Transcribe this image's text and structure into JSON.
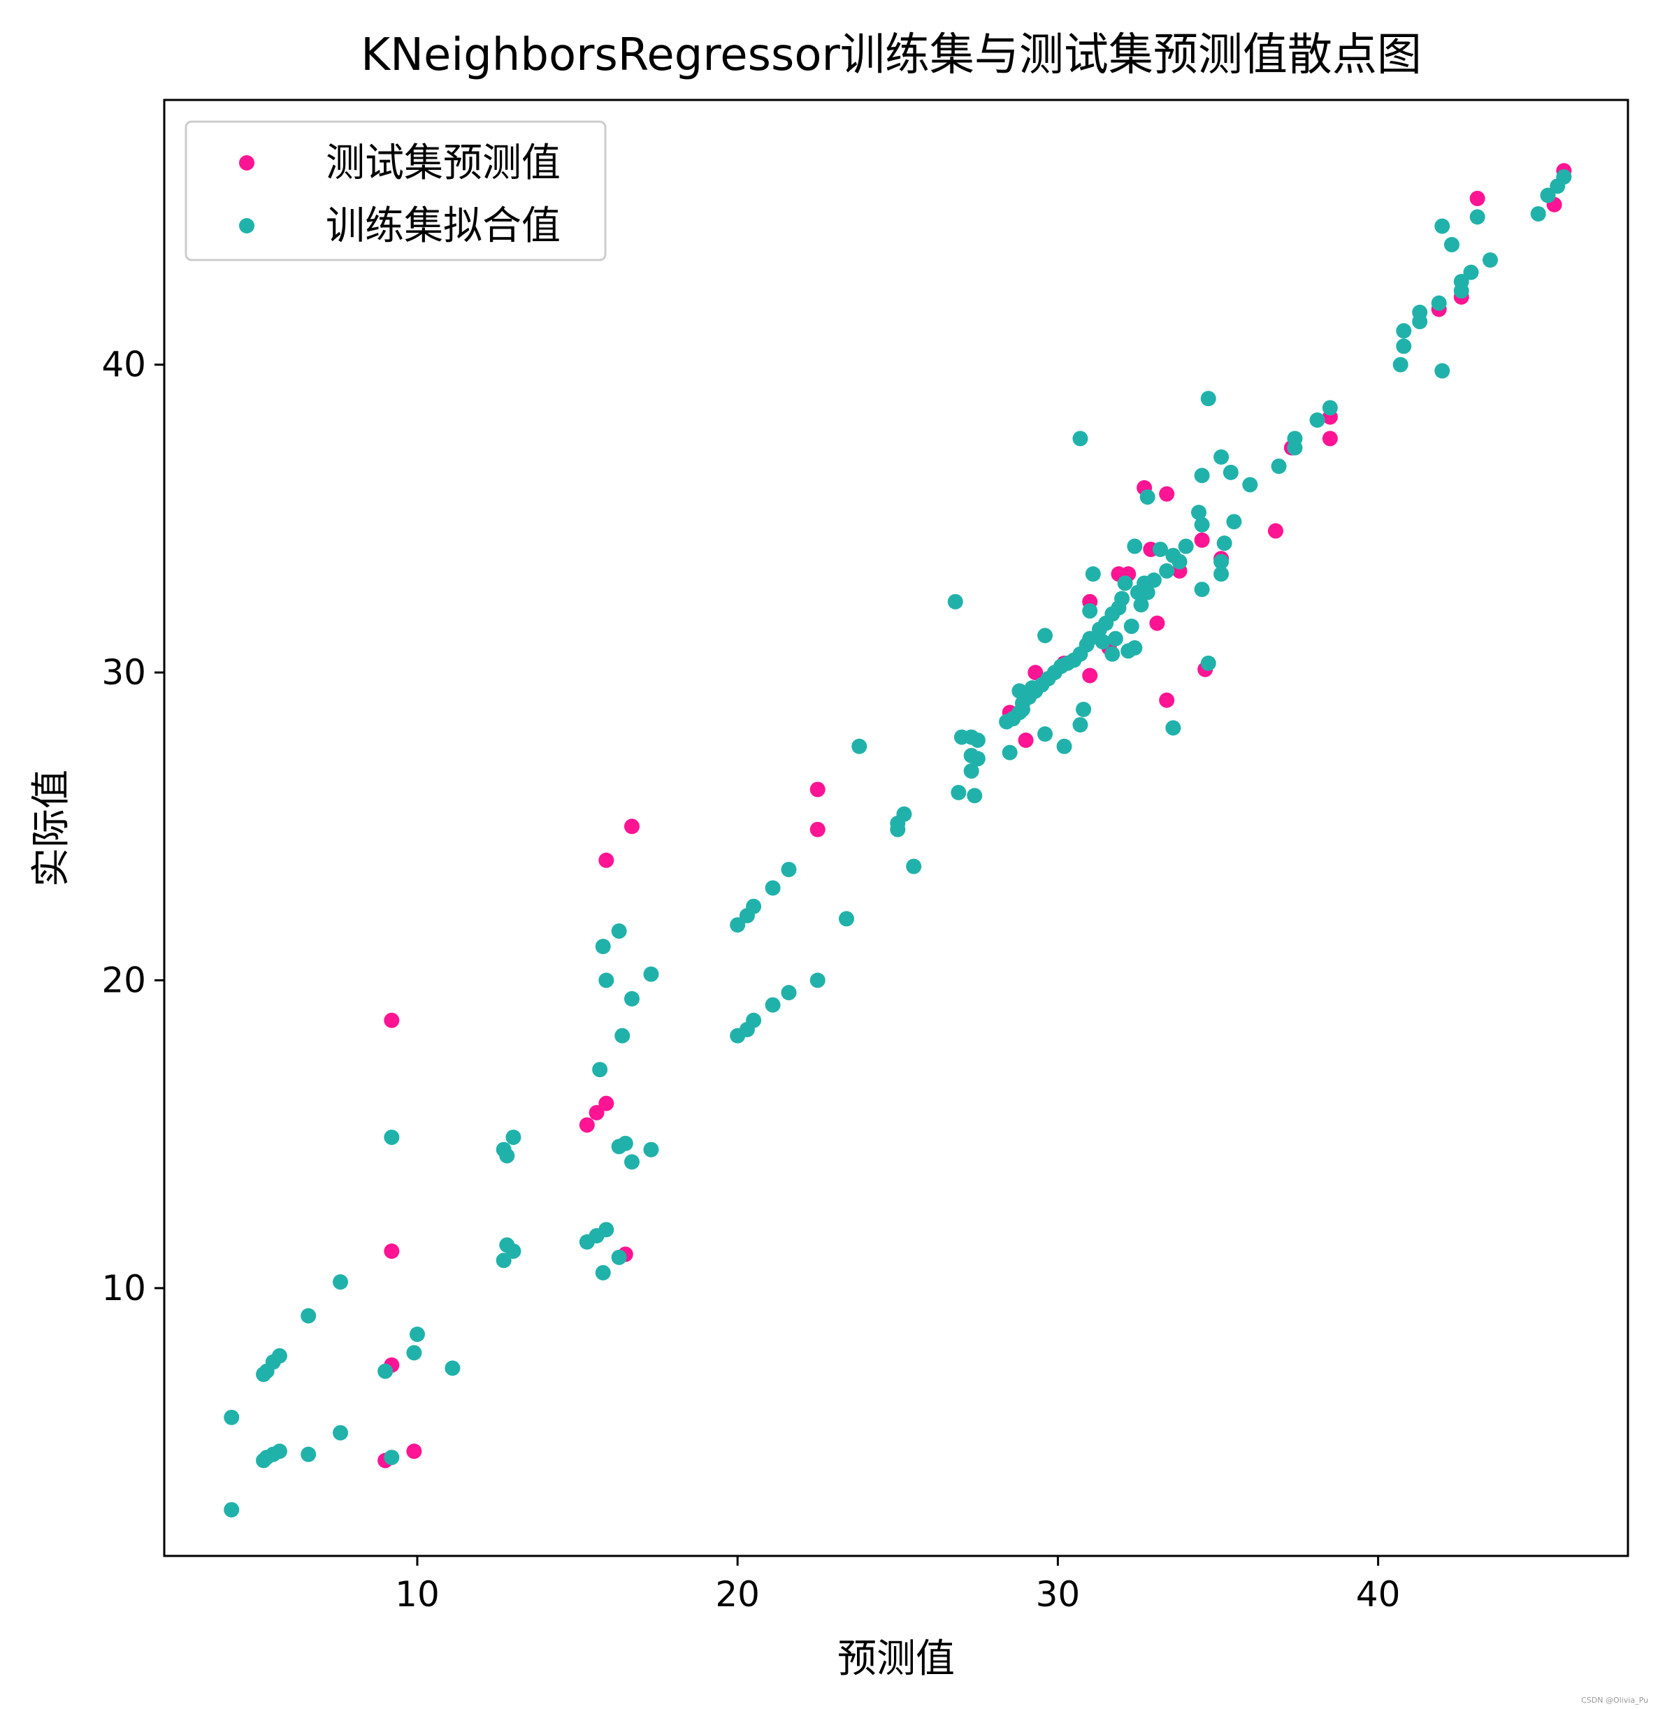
{
  "chart_data": {
    "type": "scatter",
    "title": "KNeighborsRegressor训练集与测试集预测值散点图",
    "xlabel": "预测值",
    "ylabel": "实际值",
    "xlim": [
      2.1,
      47.8
    ],
    "ylim": [
      1.3,
      48.6
    ],
    "xticks": [
      10,
      20,
      30,
      40
    ],
    "yticks": [
      10,
      20,
      30,
      40
    ],
    "grid": false,
    "legend_position": "top-left",
    "series": [
      {
        "name": "测试集预测值",
        "color": "#ff1493",
        "points": [
          [
            45.8,
            46.3
          ],
          [
            45.5,
            45.2
          ],
          [
            43.1,
            45.4
          ],
          [
            42.6,
            42.2
          ],
          [
            41.9,
            41.8
          ],
          [
            38.5,
            38.3
          ],
          [
            38.5,
            37.6
          ],
          [
            37.3,
            37.3
          ],
          [
            36.8,
            34.6
          ],
          [
            34.6,
            30.1
          ],
          [
            33.4,
            29.1
          ],
          [
            33.4,
            35.8
          ],
          [
            32.7,
            36.0
          ],
          [
            33.1,
            31.6
          ],
          [
            32.2,
            33.2
          ],
          [
            32.9,
            34.0
          ],
          [
            31.9,
            33.2
          ],
          [
            31.6,
            30.8
          ],
          [
            31.0,
            32.3
          ],
          [
            31.0,
            29.9
          ],
          [
            30.2,
            30.3
          ],
          [
            29.3,
            30.0
          ],
          [
            29.0,
            27.8
          ],
          [
            28.5,
            28.7
          ],
          [
            22.5,
            26.2
          ],
          [
            22.5,
            24.9
          ],
          [
            16.7,
            25.0
          ],
          [
            15.9,
            23.9
          ],
          [
            15.9,
            16.0
          ],
          [
            15.6,
            15.7
          ],
          [
            15.3,
            15.3
          ],
          [
            16.5,
            11.1
          ],
          [
            9.2,
            18.7
          ],
          [
            9.2,
            11.2
          ],
          [
            9.2,
            7.5
          ],
          [
            9.0,
            4.4
          ],
          [
            9.9,
            4.7
          ],
          [
            35.1,
            33.7
          ],
          [
            33.8,
            33.3
          ],
          [
            34.5,
            34.3
          ]
        ]
      },
      {
        "name": "训练集拟合值",
        "color": "#20b2aa",
        "points": [
          [
            45.8,
            46.1
          ],
          [
            45.6,
            45.8
          ],
          [
            45.3,
            45.5
          ],
          [
            45.0,
            44.9
          ],
          [
            43.1,
            44.8
          ],
          [
            42.0,
            44.5
          ],
          [
            42.3,
            43.9
          ],
          [
            43.5,
            43.4
          ],
          [
            42.9,
            43.0
          ],
          [
            42.6,
            42.7
          ],
          [
            42.6,
            42.4
          ],
          [
            41.9,
            42.0
          ],
          [
            41.3,
            41.4
          ],
          [
            41.3,
            41.7
          ],
          [
            40.8,
            41.1
          ],
          [
            40.8,
            40.6
          ],
          [
            40.7,
            40.0
          ],
          [
            42.0,
            39.8
          ],
          [
            34.7,
            38.9
          ],
          [
            38.5,
            38.6
          ],
          [
            38.1,
            38.2
          ],
          [
            37.4,
            37.6
          ],
          [
            37.4,
            37.3
          ],
          [
            36.9,
            36.7
          ],
          [
            36.0,
            36.1
          ],
          [
            35.4,
            36.5
          ],
          [
            35.1,
            37.0
          ],
          [
            34.5,
            36.4
          ],
          [
            35.5,
            34.9
          ],
          [
            35.2,
            34.2
          ],
          [
            34.5,
            34.8
          ],
          [
            34.4,
            35.2
          ],
          [
            35.1,
            33.2
          ],
          [
            35.1,
            33.6
          ],
          [
            34.5,
            32.7
          ],
          [
            34.7,
            30.3
          ],
          [
            33.6,
            28.2
          ],
          [
            30.7,
            37.6
          ],
          [
            32.8,
            35.7
          ],
          [
            32.4,
            34.1
          ],
          [
            33.2,
            34.0
          ],
          [
            33.6,
            33.8
          ],
          [
            34.0,
            34.1
          ],
          [
            33.8,
            33.6
          ],
          [
            33.4,
            33.3
          ],
          [
            33.0,
            33.0
          ],
          [
            32.7,
            32.9
          ],
          [
            32.5,
            32.6
          ],
          [
            32.1,
            32.9
          ],
          [
            32.0,
            32.4
          ],
          [
            31.9,
            32.1
          ],
          [
            31.7,
            31.9
          ],
          [
            31.5,
            31.6
          ],
          [
            31.3,
            31.4
          ],
          [
            31.0,
            31.1
          ],
          [
            30.9,
            30.9
          ],
          [
            30.7,
            30.6
          ],
          [
            30.5,
            30.4
          ],
          [
            30.3,
            30.3
          ],
          [
            30.1,
            30.2
          ],
          [
            29.9,
            30.0
          ],
          [
            29.7,
            29.8
          ],
          [
            29.5,
            29.6
          ],
          [
            29.3,
            29.4
          ],
          [
            29.1,
            29.2
          ],
          [
            28.9,
            29.0
          ],
          [
            28.8,
            28.7
          ],
          [
            28.6,
            28.5
          ],
          [
            28.4,
            28.4
          ],
          [
            28.9,
            28.8
          ],
          [
            29.6,
            31.2
          ],
          [
            29.6,
            28.0
          ],
          [
            30.2,
            27.6
          ],
          [
            30.7,
            28.3
          ],
          [
            30.8,
            28.8
          ],
          [
            31.1,
            33.2
          ],
          [
            31.0,
            32.0
          ],
          [
            32.4,
            30.8
          ],
          [
            32.2,
            30.7
          ],
          [
            31.8,
            31.1
          ],
          [
            31.7,
            30.6
          ],
          [
            32.3,
            31.5
          ],
          [
            32.6,
            32.2
          ],
          [
            32.8,
            32.6
          ],
          [
            31.4,
            31.0
          ],
          [
            28.8,
            29.4
          ],
          [
            29.2,
            29.5
          ],
          [
            28.5,
            27.4
          ],
          [
            26.8,
            32.3
          ],
          [
            27.0,
            27.9
          ],
          [
            27.3,
            27.9
          ],
          [
            27.5,
            27.8
          ],
          [
            27.3,
            27.3
          ],
          [
            27.5,
            27.2
          ],
          [
            27.3,
            26.8
          ],
          [
            26.9,
            26.1
          ],
          [
            27.4,
            26.0
          ],
          [
            23.8,
            27.6
          ],
          [
            25.2,
            25.4
          ],
          [
            25.0,
            25.1
          ],
          [
            25.0,
            24.9
          ],
          [
            25.5,
            23.7
          ],
          [
            23.4,
            22.0
          ],
          [
            22.5,
            20.0
          ],
          [
            21.6,
            23.6
          ],
          [
            21.1,
            23.0
          ],
          [
            20.5,
            22.4
          ],
          [
            20.3,
            22.1
          ],
          [
            20.0,
            21.8
          ],
          [
            21.6,
            19.6
          ],
          [
            21.1,
            19.2
          ],
          [
            20.5,
            18.7
          ],
          [
            20.3,
            18.4
          ],
          [
            20.0,
            18.2
          ],
          [
            17.3,
            20.2
          ],
          [
            16.7,
            19.4
          ],
          [
            15.9,
            20.0
          ],
          [
            16.3,
            21.6
          ],
          [
            15.8,
            21.1
          ],
          [
            16.4,
            18.2
          ],
          [
            15.7,
            17.1
          ],
          [
            17.3,
            14.5
          ],
          [
            16.7,
            14.1
          ],
          [
            16.5,
            14.7
          ],
          [
            16.3,
            14.6
          ],
          [
            15.9,
            11.9
          ],
          [
            15.6,
            11.7
          ],
          [
            15.3,
            11.5
          ],
          [
            16.3,
            11.0
          ],
          [
            15.8,
            10.5
          ],
          [
            13.0,
            14.9
          ],
          [
            12.7,
            14.5
          ],
          [
            12.8,
            14.3
          ],
          [
            13.0,
            11.2
          ],
          [
            12.8,
            11.4
          ],
          [
            12.7,
            10.9
          ],
          [
            9.2,
            14.9
          ],
          [
            11.1,
            7.4
          ],
          [
            10.0,
            8.5
          ],
          [
            9.9,
            7.9
          ],
          [
            9.0,
            7.3
          ],
          [
            7.6,
            10.2
          ],
          [
            6.6,
            9.1
          ],
          [
            5.7,
            7.8
          ],
          [
            5.5,
            7.6
          ],
          [
            5.3,
            7.3
          ],
          [
            5.2,
            7.2
          ],
          [
            7.6,
            5.3
          ],
          [
            6.6,
            4.6
          ],
          [
            5.7,
            4.7
          ],
          [
            5.5,
            4.6
          ],
          [
            5.3,
            4.5
          ],
          [
            5.2,
            4.4
          ],
          [
            4.2,
            5.8
          ],
          [
            4.2,
            2.8
          ],
          [
            9.2,
            4.5
          ]
        ]
      }
    ]
  },
  "watermark": "CSDN @Olivia_Pu"
}
